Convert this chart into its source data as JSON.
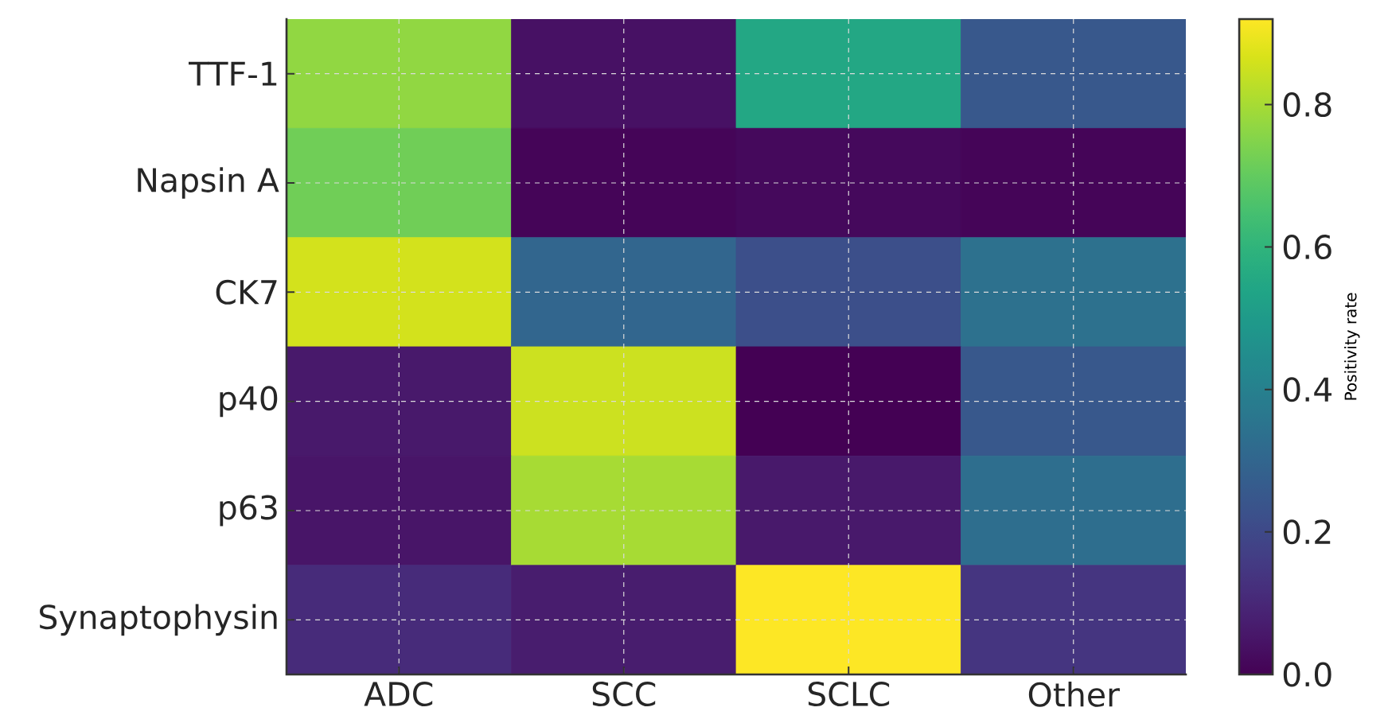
{
  "chart_data": {
    "type": "heatmap",
    "categories": [
      "ADC",
      "SCC",
      "SCLC",
      "Other"
    ],
    "y_categories": [
      "TTF-1",
      "Napsin A",
      "CK7",
      "p40",
      "p63",
      "Synaptophysin"
    ],
    "cells": [
      [
        0.77,
        0.04,
        0.55,
        0.25
      ],
      [
        0.72,
        0.01,
        0.02,
        0.01
      ],
      [
        0.86,
        0.3,
        0.22,
        0.34
      ],
      [
        0.06,
        0.85,
        0.0,
        0.25
      ],
      [
        0.05,
        0.8,
        0.06,
        0.33
      ],
      [
        0.11,
        0.07,
        0.92,
        0.14
      ]
    ],
    "clim": [
      0,
      0.92
    ],
    "cticks": [
      {
        "value": 0,
        "label": "0.0"
      },
      0.2,
      0.4,
      0.6,
      0.8
    ],
    "clabel": "Positivity rate",
    "grid": true
  }
}
